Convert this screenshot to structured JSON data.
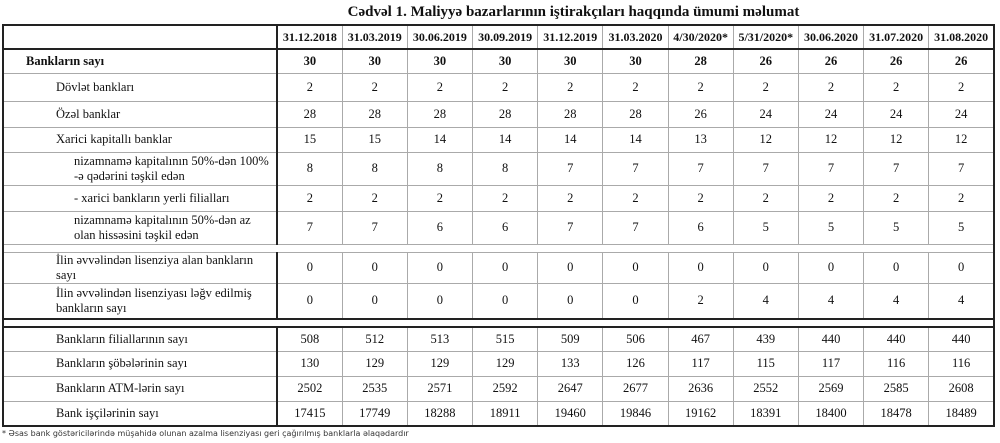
{
  "title": "Cədvəl 1. Maliyyə bazarlarının iştirakçıları haqqında ümumi məlumat",
  "columns": [
    "31.12.2018",
    "31.03.2019",
    "30.06.2019",
    "30.09.2019",
    "31.12.2019",
    "31.03.2020",
    "4/30/2020*",
    "5/31/2020*",
    "30.06.2020",
    "31.07.2020",
    "31.08.2020"
  ],
  "rows": [
    {
      "label": "Bankların sayı",
      "indent": 1,
      "bold": true,
      "h": 24,
      "values": [
        "30",
        "30",
        "30",
        "30",
        "30",
        "30",
        "28",
        "26",
        "26",
        "26",
        "26"
      ]
    },
    {
      "label": "Dövlət bankları",
      "indent": 2,
      "h": 28,
      "values": [
        "2",
        "2",
        "2",
        "2",
        "2",
        "2",
        "2",
        "2",
        "2",
        "2",
        "2"
      ]
    },
    {
      "label": "Özəl banklar",
      "indent": 2,
      "h": 26,
      "values": [
        "28",
        "28",
        "28",
        "28",
        "28",
        "28",
        "26",
        "24",
        "24",
        "24",
        "24"
      ]
    },
    {
      "label": "Xarici kapitallı banklar",
      "indent": 2,
      "h": 25,
      "values": [
        "15",
        "15",
        "14",
        "14",
        "14",
        "14",
        "13",
        "12",
        "12",
        "12",
        "12"
      ]
    },
    {
      "label": "nizamnamə kapitalının 50%-dən 100% -ə qədərini təşkil edən",
      "indent": 3,
      "h": 33,
      "values": [
        "8",
        "8",
        "8",
        "8",
        "7",
        "7",
        "7",
        "7",
        "7",
        "7",
        "7"
      ]
    },
    {
      "label": " -  xarici bankların yerli filialları",
      "indent": 3,
      "h": 26,
      "values": [
        "2",
        "2",
        "2",
        "2",
        "2",
        "2",
        "2",
        "2",
        "2",
        "2",
        "2"
      ]
    },
    {
      "label": "nizamnamə kapitalının 50%-dən az olan hissəsini  təşkil edən",
      "indent": 3,
      "h": 33,
      "values": [
        "7",
        "7",
        "6",
        "6",
        "7",
        "7",
        "6",
        "5",
        "5",
        "5",
        "5"
      ]
    },
    {
      "sep": 1
    },
    {
      "label": "İlin əvvəlindən lisenziya alan bankların sayı",
      "indent": 2,
      "h": 30,
      "values": [
        "0",
        "0",
        "0",
        "0",
        "0",
        "0",
        "0",
        "0",
        "0",
        "0",
        "0"
      ]
    },
    {
      "label": "İlin əvvəlindən lisenziyası ləğv edilmiş bankların sayı",
      "indent": 2,
      "h": 36,
      "values": [
        "0",
        "0",
        "0",
        "0",
        "0",
        "0",
        "2",
        "4",
        "4",
        "4",
        "4"
      ]
    },
    {
      "sep": 2
    },
    {
      "label": "Bankların filiallarının sayı",
      "indent": 2,
      "h": 24,
      "values": [
        "508",
        "512",
        "513",
        "515",
        "509",
        "506",
        "467",
        "439",
        "440",
        "440",
        "440"
      ]
    },
    {
      "label": "Bankların şöbələrinin sayı",
      "indent": 2,
      "h": 25,
      "values": [
        "130",
        "129",
        "129",
        "129",
        "133",
        "126",
        "117",
        "115",
        "117",
        "116",
        "116"
      ]
    },
    {
      "label": "Bankların ATM-lərin sayı",
      "indent": 2,
      "h": 25,
      "values": [
        "2502",
        "2535",
        "2571",
        "2592",
        "2647",
        "2677",
        "2636",
        "2552",
        "2569",
        "2585",
        "2608"
      ]
    },
    {
      "label": "Bank işçilərinin sayı",
      "indent": 2,
      "h": 25,
      "values": [
        "17415",
        "17749",
        "18288",
        "18911",
        "19460",
        "19846",
        "19162",
        "18391",
        "18400",
        "18478",
        "18489"
      ]
    }
  ],
  "footnote": "* Əsas bank göstəricilərində müşahidə olunan azalma lisenziyası geri çağırılmış banklarla əlaqədardır"
}
